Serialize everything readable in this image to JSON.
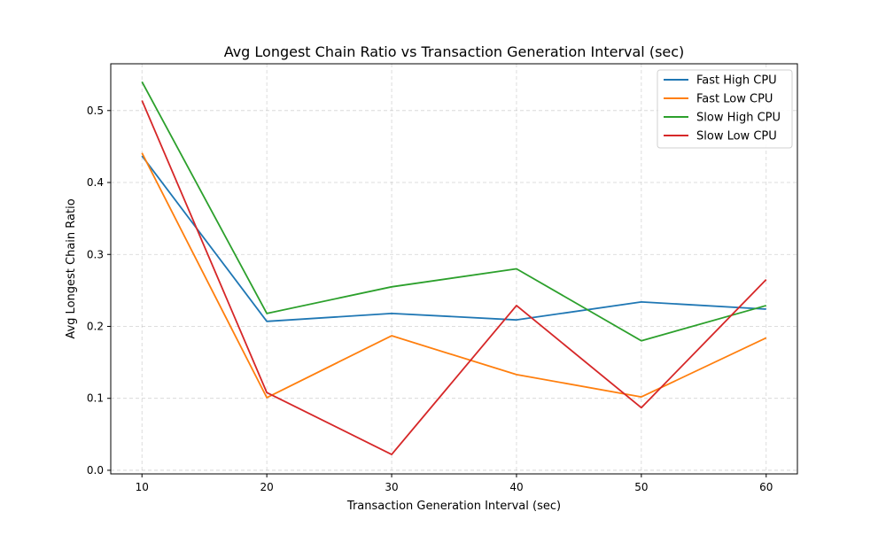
{
  "chart_data": {
    "type": "line",
    "title": "Avg Longest Chain Ratio vs Transaction Generation Interval (sec)",
    "xlabel": "Transaction Generation Interval (sec)",
    "ylabel": "Avg Longest Chain Ratio",
    "x": [
      10,
      20,
      30,
      40,
      50,
      60
    ],
    "xticks": [
      10,
      20,
      30,
      40,
      50,
      60
    ],
    "yticks": [
      "0.0",
      "0.1",
      "0.2",
      "0.3",
      "0.4",
      "0.5"
    ],
    "xlim": [
      7.5,
      62.5
    ],
    "ylim": [
      -0.005,
      0.565
    ],
    "grid": true,
    "legend_position": "top-right",
    "series": [
      {
        "name": "Fast High CPU",
        "color": "#1f77b4",
        "values": [
          0.437,
          0.207,
          0.218,
          0.209,
          0.234,
          0.224
        ]
      },
      {
        "name": "Fast Low CPU",
        "color": "#ff7f0e",
        "values": [
          0.441,
          0.101,
          0.187,
          0.133,
          0.102,
          0.184
        ]
      },
      {
        "name": "Slow High CPU",
        "color": "#2ca02c",
        "values": [
          0.54,
          0.218,
          0.255,
          0.28,
          0.18,
          0.229
        ]
      },
      {
        "name": "Slow Low CPU",
        "color": "#d62728",
        "values": [
          0.514,
          0.108,
          0.022,
          0.229,
          0.087,
          0.265
        ]
      }
    ]
  }
}
